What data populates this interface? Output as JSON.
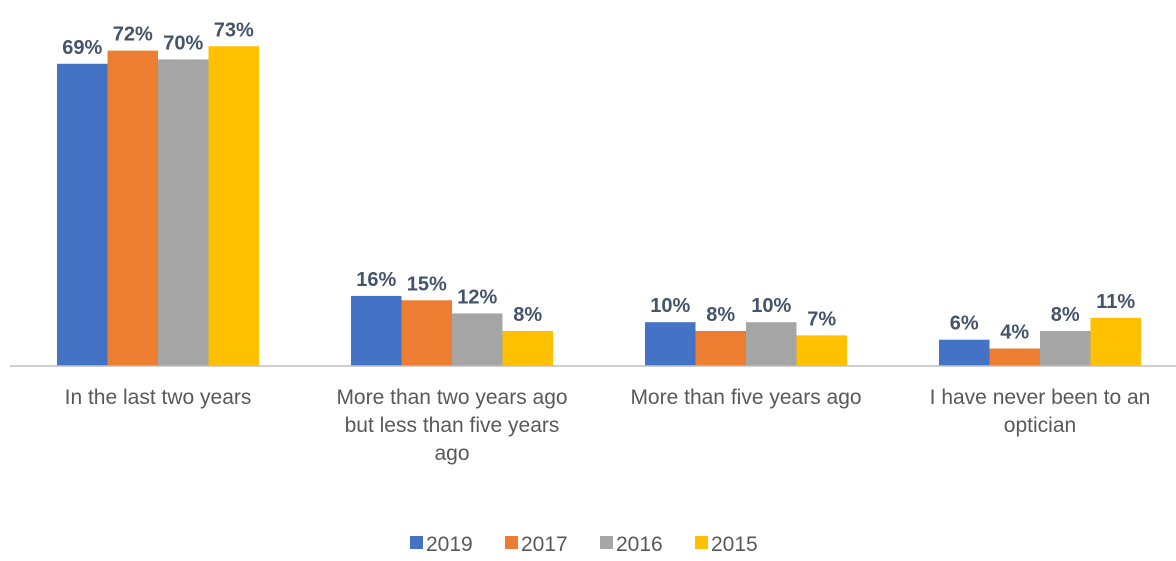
{
  "chart_data": {
    "type": "bar",
    "title": "",
    "xlabel": "",
    "ylabel": "",
    "ylim": [
      0,
      80
    ],
    "grid": false,
    "legend_position": "bottom",
    "categories": [
      [
        "In the last two years"
      ],
      [
        "More than two years ago",
        "but less than five years",
        "ago"
      ],
      [
        "More than five years ago"
      ],
      [
        "I have never been to an",
        "optician"
      ]
    ],
    "series": [
      {
        "name": "2019",
        "color": "#4472c4",
        "values": [
          69,
          16,
          10,
          6
        ],
        "labels": [
          "69%",
          "16%",
          "10%",
          "6%"
        ]
      },
      {
        "name": "2017",
        "color": "#ed7d31",
        "values": [
          72,
          15,
          8,
          4
        ],
        "labels": [
          "72%",
          "15%",
          "8%",
          "4%"
        ]
      },
      {
        "name": "2016",
        "color": "#a5a5a5",
        "values": [
          70,
          12,
          10,
          8
        ],
        "labels": [
          "70%",
          "12%",
          "10%",
          "8%"
        ]
      },
      {
        "name": "2015",
        "color": "#ffc000",
        "values": [
          73,
          8,
          7,
          11
        ],
        "labels": [
          "73%",
          "8%",
          "7%",
          "11%"
        ]
      }
    ]
  }
}
